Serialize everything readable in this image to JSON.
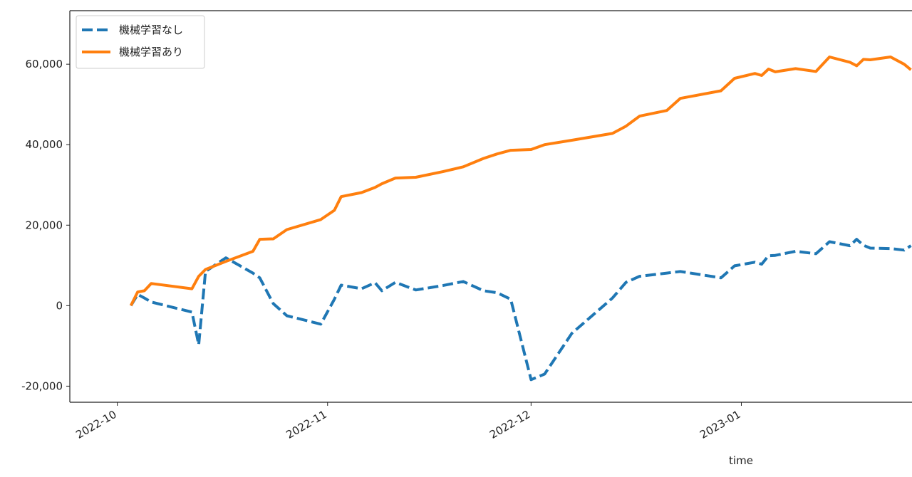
{
  "chart_data": {
    "type": "line",
    "x_label": "time",
    "x": [
      "2022-10-03",
      "2022-10-04",
      "2022-10-05",
      "2022-10-06",
      "2022-10-12",
      "2022-10-13",
      "2022-10-14",
      "2022-10-17",
      "2022-10-21",
      "2022-10-22",
      "2022-10-24",
      "2022-10-26",
      "2022-10-31",
      "2022-11-02",
      "2022-11-03",
      "2022-11-06",
      "2022-11-08",
      "2022-11-09",
      "2022-11-11",
      "2022-11-14",
      "2022-11-18",
      "2022-11-21",
      "2022-11-24",
      "2022-11-26",
      "2022-11-28",
      "2022-12-01",
      "2022-12-03",
      "2022-12-07",
      "2022-12-13",
      "2022-12-15",
      "2022-12-17",
      "2022-12-21",
      "2022-12-23",
      "2022-12-29",
      "2022-12-31",
      "2023-01-03",
      "2023-01-04",
      "2023-01-05",
      "2023-01-06",
      "2023-01-09",
      "2023-01-12",
      "2023-01-14",
      "2023-01-17",
      "2023-01-18",
      "2023-01-19",
      "2023-01-20",
      "2023-01-23",
      "2023-01-25",
      "2023-01-26"
    ],
    "series": [
      {
        "name": "機械学習なし",
        "color": "#1f77b4",
        "dashed": true,
        "values": [
          0,
          2800,
          1900,
          900,
          -1600,
          -9700,
          8500,
          11900,
          8100,
          6900,
          500,
          -2500,
          -4600,
          1600,
          5100,
          4200,
          5700,
          3700,
          5800,
          3900,
          5000,
          6000,
          3700,
          3200,
          1600,
          -18400,
          -17000,
          -6900,
          1900,
          5800,
          7300,
          8100,
          8500,
          6900,
          9900,
          10800,
          10300,
          12400,
          12500,
          13500,
          12900,
          15900,
          14900,
          16500,
          15000,
          14300,
          14200,
          13800,
          14900
        ]
      },
      {
        "name": "機械学習あり",
        "color": "#ff7f0e",
        "dashed": false,
        "values": [
          0,
          3400,
          3700,
          5500,
          4200,
          7300,
          9000,
          11000,
          13500,
          16500,
          16600,
          18900,
          21400,
          23700,
          27100,
          28100,
          29400,
          30300,
          31700,
          31900,
          33300,
          34500,
          36600,
          37700,
          38600,
          38800,
          40000,
          41100,
          42800,
          44600,
          47100,
          48500,
          51500,
          53400,
          56500,
          57700,
          57200,
          58800,
          58100,
          58900,
          58200,
          61800,
          60500,
          59600,
          61200,
          61100,
          61800,
          60000,
          58600
        ]
      }
    ],
    "xlim": [
      "2022-09-24",
      "2023-01-27"
    ],
    "xticks": [
      "2022-10",
      "2022-11",
      "2022-12",
      "2023-01"
    ],
    "ylim": [
      -24000,
      73300
    ],
    "yticks": [
      {
        "value": -20000,
        "label": "-20,000"
      },
      0,
      {
        "value": 20000,
        "label": "20,000"
      },
      {
        "value": 40000,
        "label": "40,000"
      },
      {
        "value": 60000,
        "label": "60,000"
      }
    ],
    "legend": "upper left",
    "grid": false
  }
}
